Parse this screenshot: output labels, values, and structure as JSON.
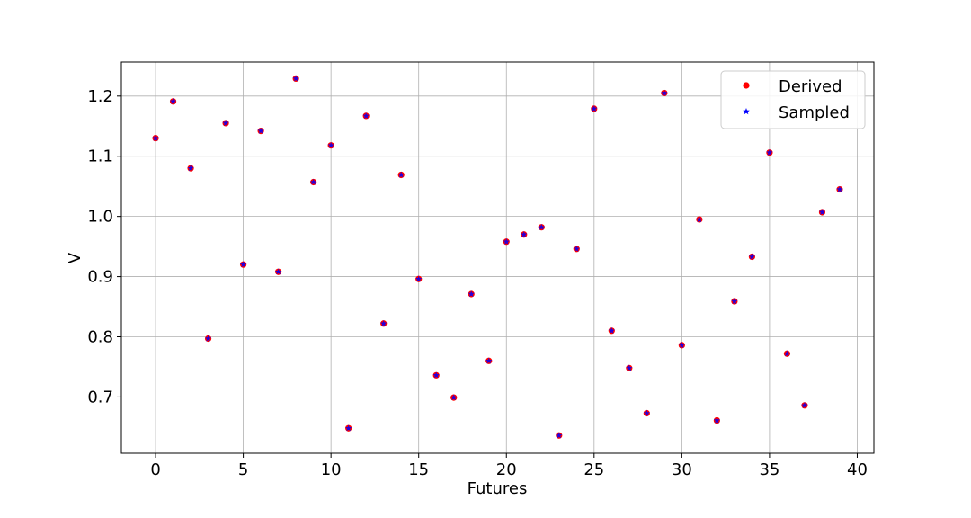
{
  "chart_data": {
    "type": "scatter",
    "title": "",
    "xlabel": "Futures",
    "ylabel": "V",
    "xlim": [
      -1.95,
      40.95
    ],
    "ylim": [
      0.6065,
      1.2565
    ],
    "xticks": [
      0,
      5,
      10,
      15,
      20,
      25,
      30,
      35,
      40
    ],
    "yticks": [
      0.7,
      0.8,
      0.9,
      1.0,
      1.1,
      1.2
    ],
    "ytick_labels": [
      "0.7",
      "0.8",
      "0.9",
      "1.0",
      "1.1",
      "1.2"
    ],
    "grid": true,
    "legend_position": "top-right",
    "x": [
      0,
      1,
      2,
      3,
      4,
      5,
      6,
      7,
      8,
      9,
      10,
      11,
      12,
      13,
      14,
      15,
      16,
      17,
      18,
      19,
      20,
      21,
      22,
      23,
      24,
      25,
      26,
      27,
      28,
      29,
      30,
      31,
      32,
      33,
      34,
      35,
      36,
      37,
      38,
      39
    ],
    "series": [
      {
        "name": "Derived",
        "marker": "circle",
        "color": "#ff0000",
        "values": [
          1.13,
          1.191,
          1.08,
          0.797,
          1.155,
          0.92,
          1.142,
          0.908,
          1.229,
          1.057,
          1.118,
          0.648,
          1.167,
          0.822,
          1.069,
          0.896,
          0.736,
          0.699,
          0.871,
          0.76,
          0.958,
          0.97,
          0.982,
          0.636,
          0.946,
          1.179,
          0.81,
          0.748,
          0.673,
          1.205,
          0.786,
          0.995,
          0.661,
          0.859,
          0.933,
          1.106,
          0.772,
          0.686,
          1.007,
          1.045
        ]
      },
      {
        "name": "Sampled",
        "marker": "star",
        "color": "#0000ff",
        "values": [
          1.13,
          1.191,
          1.08,
          0.797,
          1.155,
          0.92,
          1.142,
          0.908,
          1.229,
          1.057,
          1.118,
          0.648,
          1.167,
          0.822,
          1.069,
          0.896,
          0.736,
          0.699,
          0.871,
          0.76,
          0.958,
          0.97,
          0.982,
          0.636,
          0.946,
          1.179,
          0.81,
          0.748,
          0.673,
          1.205,
          0.786,
          0.995,
          0.661,
          0.859,
          0.933,
          1.106,
          0.772,
          0.686,
          1.007,
          1.045
        ]
      }
    ]
  }
}
